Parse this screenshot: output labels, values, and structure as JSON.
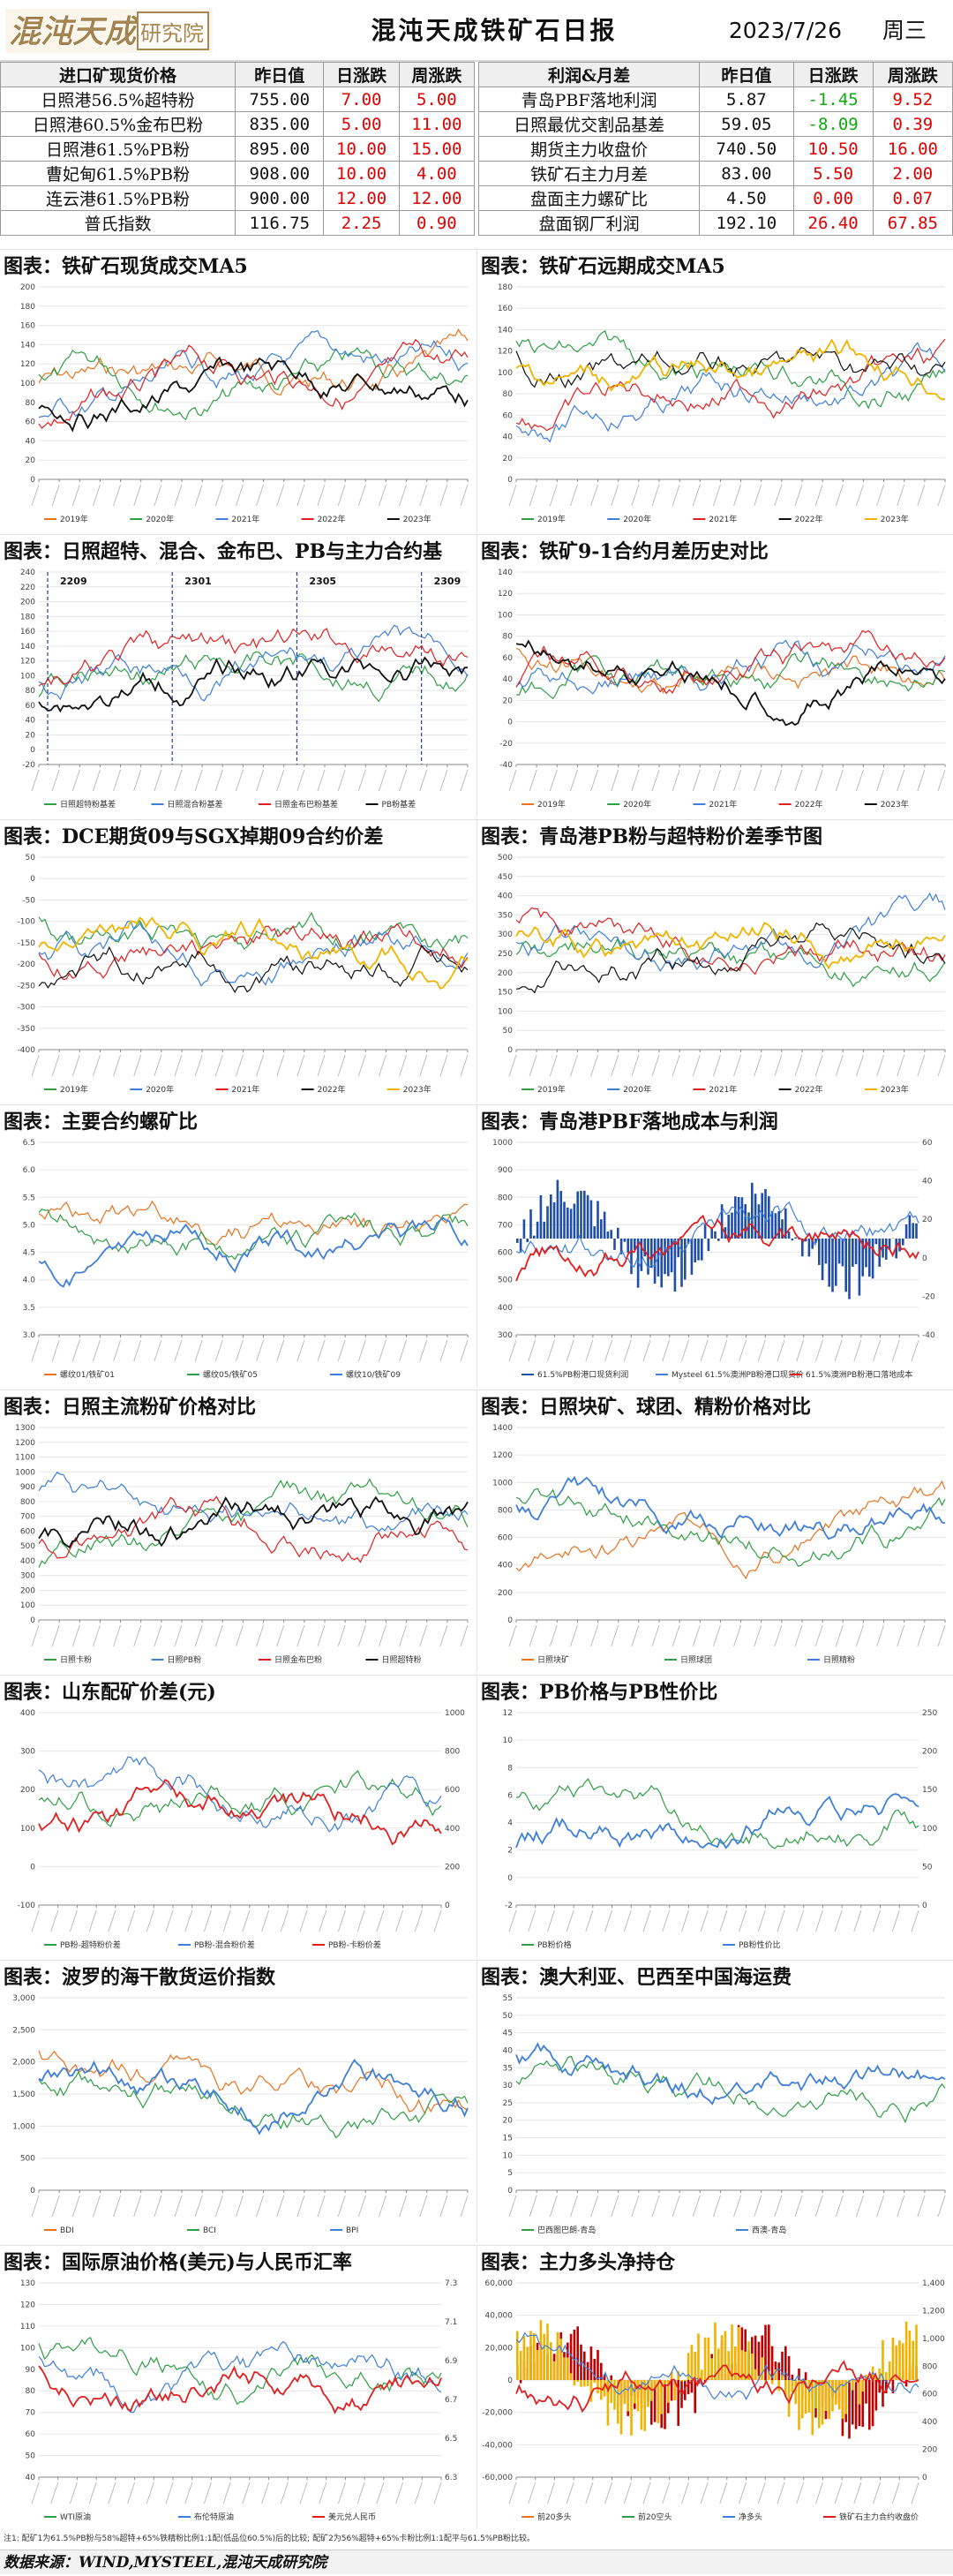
{
  "header": {
    "title": "混沌天成铁矿石日报",
    "date": "2023/7/26",
    "weekday": "周三"
  },
  "colors": {
    "up": "#e00000",
    "down": "#11a811",
    "logo_brown": "#a8864f"
  },
  "spot_table": {
    "headers": [
      "进口矿现货价格",
      "昨日值",
      "日涨跌",
      "周涨跌"
    ],
    "rows": [
      {
        "name": "日照港56.5%超特粉",
        "value": "755.00",
        "day": "7.00",
        "day_dir": "up",
        "week": "5.00",
        "week_dir": "up"
      },
      {
        "name": "日照港60.5%金布巴粉",
        "value": "835.00",
        "day": "5.00",
        "day_dir": "up",
        "week": "11.00",
        "week_dir": "up"
      },
      {
        "name": "日照港61.5%PB粉",
        "value": "895.00",
        "day": "10.00",
        "day_dir": "up",
        "week": "15.00",
        "week_dir": "up"
      },
      {
        "name": "曹妃甸61.5%PB粉",
        "value": "908.00",
        "day": "10.00",
        "day_dir": "up",
        "week": "4.00",
        "week_dir": "up"
      },
      {
        "name": "连云港61.5%PB粉",
        "value": "900.00",
        "day": "12.00",
        "day_dir": "up",
        "week": "12.00",
        "week_dir": "up"
      },
      {
        "name": "普氏指数",
        "value": "116.75",
        "day": "2.25",
        "day_dir": "up",
        "week": "0.90",
        "week_dir": "up"
      }
    ]
  },
  "profit_table": {
    "headers": [
      "利润&月差",
      "昨日值",
      "日涨跌",
      "周涨跌"
    ],
    "rows": [
      {
        "name": "青岛PBF落地利润",
        "value": "5.87",
        "day": "-1.45",
        "day_dir": "down",
        "week": "9.52",
        "week_dir": "up"
      },
      {
        "name": "日照最优交割品基差",
        "value": "59.05",
        "day": "-8.09",
        "day_dir": "down",
        "week": "0.39",
        "week_dir": "up"
      },
      {
        "name": "期货主力收盘价",
        "value": "740.50",
        "day": "10.50",
        "day_dir": "up",
        "week": "16.00",
        "week_dir": "up"
      },
      {
        "name": "铁矿石主力月差",
        "value": "83.00",
        "day": "5.50",
        "day_dir": "up",
        "week": "2.00",
        "week_dir": "up"
      },
      {
        "name": "盘面主力螺矿比",
        "value": "4.50",
        "day": "0.00",
        "day_dir": "up",
        "week": "0.07",
        "week_dir": "up"
      },
      {
        "name": "盘面钢厂利润",
        "value": "192.10",
        "day": "26.40",
        "day_dir": "up",
        "week": "67.85",
        "week_dir": "up"
      }
    ]
  },
  "charts": [
    {
      "title": "图表：铁矿石现货成交MA5",
      "y_ticks": [
        "0",
        "20",
        "40",
        "60",
        "80",
        "100",
        "120",
        "140",
        "160",
        "180",
        "200"
      ],
      "legend": [
        "2019年",
        "2020年",
        "2021年",
        "2022年",
        "2023年"
      ]
    },
    {
      "title": "图表：铁矿石远期成交MA5",
      "y_ticks": [
        "0",
        "20",
        "40",
        "60",
        "80",
        "100",
        "120",
        "140",
        "160",
        "180"
      ],
      "legend": [
        "2019年",
        "2020年",
        "2021年",
        "2022年",
        "2023年"
      ]
    },
    {
      "title": "图表：日照超特、混合、金布巴、PB与主力合约基",
      "y_ticks": [
        "-20",
        "0",
        "20",
        "40",
        "60",
        "80",
        "100",
        "120",
        "140",
        "160",
        "180",
        "200",
        "220",
        "240"
      ],
      "legend": [
        "日照超特粉基差",
        "日照混合粉基差",
        "日照金布巴粉基差",
        "PB粉基差"
      ],
      "annotations": [
        "2209",
        "2301",
        "2305",
        "2309"
      ]
    },
    {
      "title": "图表：铁矿9-1合约月差历史对比",
      "y_ticks": [
        "-40",
        "-20",
        "0",
        "20",
        "40",
        "60",
        "80",
        "100",
        "120",
        "140"
      ],
      "legend": [
        "2019年",
        "2020年",
        "2021年",
        "2022年",
        "2023年"
      ]
    },
    {
      "title": "图表：DCE期货09与SGX掉期09合约价差",
      "y_ticks": [
        "-400",
        "-350",
        "-300",
        "-250",
        "-200",
        "-150",
        "-100",
        "-50",
        "0",
        "50"
      ],
      "legend": [
        "2019年",
        "2020年",
        "2021年",
        "2022年",
        "2023年"
      ]
    },
    {
      "title": "图表：青岛港PB粉与超特粉价差季节图",
      "y_ticks": [
        "0",
        "50",
        "100",
        "150",
        "200",
        "250",
        "300",
        "350",
        "400",
        "450",
        "500"
      ],
      "legend": [
        "2019年",
        "2020年",
        "2021年",
        "2022年",
        "2023年"
      ]
    },
    {
      "title": "图表：主要合约螺矿比",
      "y_ticks": [
        "3.0",
        "3.5",
        "4.0",
        "4.5",
        "5.0",
        "5.5",
        "6.0",
        "6.5"
      ],
      "legend": [
        "螺纹01/铁矿01",
        "螺纹05/铁矿05",
        "螺纹10/铁矿09"
      ]
    },
    {
      "title": "图表：青岛港PBF落地成本与利润",
      "y_ticks": [
        "300",
        "400",
        "500",
        "600",
        "700",
        "800",
        "900",
        "1000"
      ],
      "y2_ticks": [
        "-40",
        "-20",
        "0",
        "20",
        "40",
        "60"
      ],
      "legend": [
        "61.5%PB粉港口现货利润",
        "Mysteel 61.5%澳洲PB粉港口现货价",
        "61.5%澳洲PB粉港口落地成本"
      ]
    },
    {
      "title": "图表：日照主流粉矿价格对比",
      "y_ticks": [
        "0",
        "100",
        "200",
        "300",
        "400",
        "500",
        "600",
        "700",
        "800",
        "900",
        "1000",
        "1100",
        "1200",
        "1300"
      ],
      "legend": [
        "日照卡粉",
        "日照PB粉",
        "日照金布巴粉",
        "日照超特粉"
      ]
    },
    {
      "title": "图表：日照块矿、球团、精粉价格对比",
      "y_ticks": [
        "0",
        "200",
        "400",
        "600",
        "800",
        "1000",
        "1200",
        "1400"
      ],
      "legend": [
        "日照块矿",
        "日照球团",
        "日照精粉"
      ]
    },
    {
      "title": "图表：山东配矿价差(元)",
      "y_ticks": [
        "-100",
        "0",
        "100",
        "200",
        "300",
        "400"
      ],
      "y2_ticks": [
        "0",
        "200",
        "400",
        "600",
        "800",
        "1000"
      ],
      "legend": [
        "PB粉-超特粉价差",
        "PB粉-混合粉价差",
        "PB粉-卡粉价差"
      ]
    },
    {
      "title": "图表：PB价格与PB性价比",
      "y_ticks": [
        "-2",
        "0",
        "2",
        "4",
        "6",
        "8",
        "10",
        "12"
      ],
      "y2_ticks": [
        "0",
        "50",
        "100",
        "150",
        "200",
        "250"
      ],
      "legend": [
        "PB粉价格",
        "PB粉性价比"
      ]
    },
    {
      "title": "图表：波罗的海干散货运价指数",
      "y_ticks": [
        "0",
        "500",
        "1,000",
        "1,500",
        "2,000",
        "2,500",
        "3,000"
      ],
      "legend": [
        "BDI",
        "BCI",
        "BPI"
      ]
    },
    {
      "title": "图表：澳大利亚、巴西至中国海运费",
      "y_ticks": [
        "0",
        "5",
        "10",
        "15",
        "20",
        "25",
        "30",
        "35",
        "40",
        "45",
        "50",
        "55"
      ],
      "legend": [
        "巴西图巴朗-青岛",
        "西澳-青岛"
      ]
    },
    {
      "title": "图表：国际原油价格(美元)与人民币汇率",
      "y_ticks": [
        "40",
        "50",
        "60",
        "70",
        "80",
        "90",
        "100",
        "110",
        "120",
        "130"
      ],
      "y2_ticks": [
        "6.3",
        "6.5",
        "6.7",
        "6.9",
        "7.1",
        "7.3"
      ],
      "legend": [
        "WTI原油",
        "布伦特原油",
        "美元兑人民币"
      ]
    },
    {
      "title": "图表：主力多头净持仓",
      "y_ticks": [
        "-60,000",
        "-40,000",
        "-20,000",
        "0",
        "20,000",
        "40,000",
        "60,000"
      ],
      "y2_ticks": [
        "0",
        "200",
        "400",
        "600",
        "800",
        "1,000",
        "1,200",
        "1,400"
      ],
      "legend": [
        "前20多头",
        "前20空头",
        "净多头",
        "铁矿石主力合约收盘价"
      ]
    }
  ],
  "footer": {
    "note": "注1: 配矿1为61.5%PB粉与58%超特+65%铁精粉比例1:1配(低品位60.5%)后的比较; 配矿2为56%超特+65%卡粉比例1:1配平与61.5%PB粉比较。",
    "source": "数据来源：WIND,MYSTEEL,混沌天成研究院"
  }
}
